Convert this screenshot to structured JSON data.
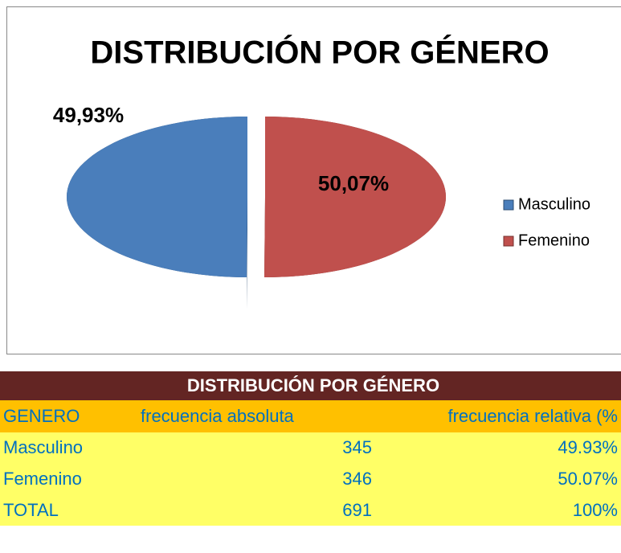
{
  "chart_data": {
    "type": "pie",
    "title": "DISTRIBUCIÓN POR GÉNERO",
    "series": [
      {
        "name": "Masculino",
        "color": "#4a7ebb",
        "values": [
          49.93
        ],
        "value_labels": [
          "49,93%"
        ]
      },
      {
        "name": "Femenino",
        "color": "#c0504d",
        "values": [
          50.07
        ],
        "value_labels": [
          "50,07%"
        ]
      }
    ],
    "legend": "right"
  },
  "table": {
    "title": "DISTRIBUCIÓN POR GÉNERO",
    "header": [
      "GENERO",
      "frecuencia absoluta",
      "frecuencia relativa (%"
    ],
    "rows": [
      [
        "Masculino",
        "345",
        "49.93%"
      ],
      [
        "Femenino",
        "346",
        "50.07%"
      ],
      [
        "TOTAL",
        "691",
        "100%"
      ]
    ]
  }
}
